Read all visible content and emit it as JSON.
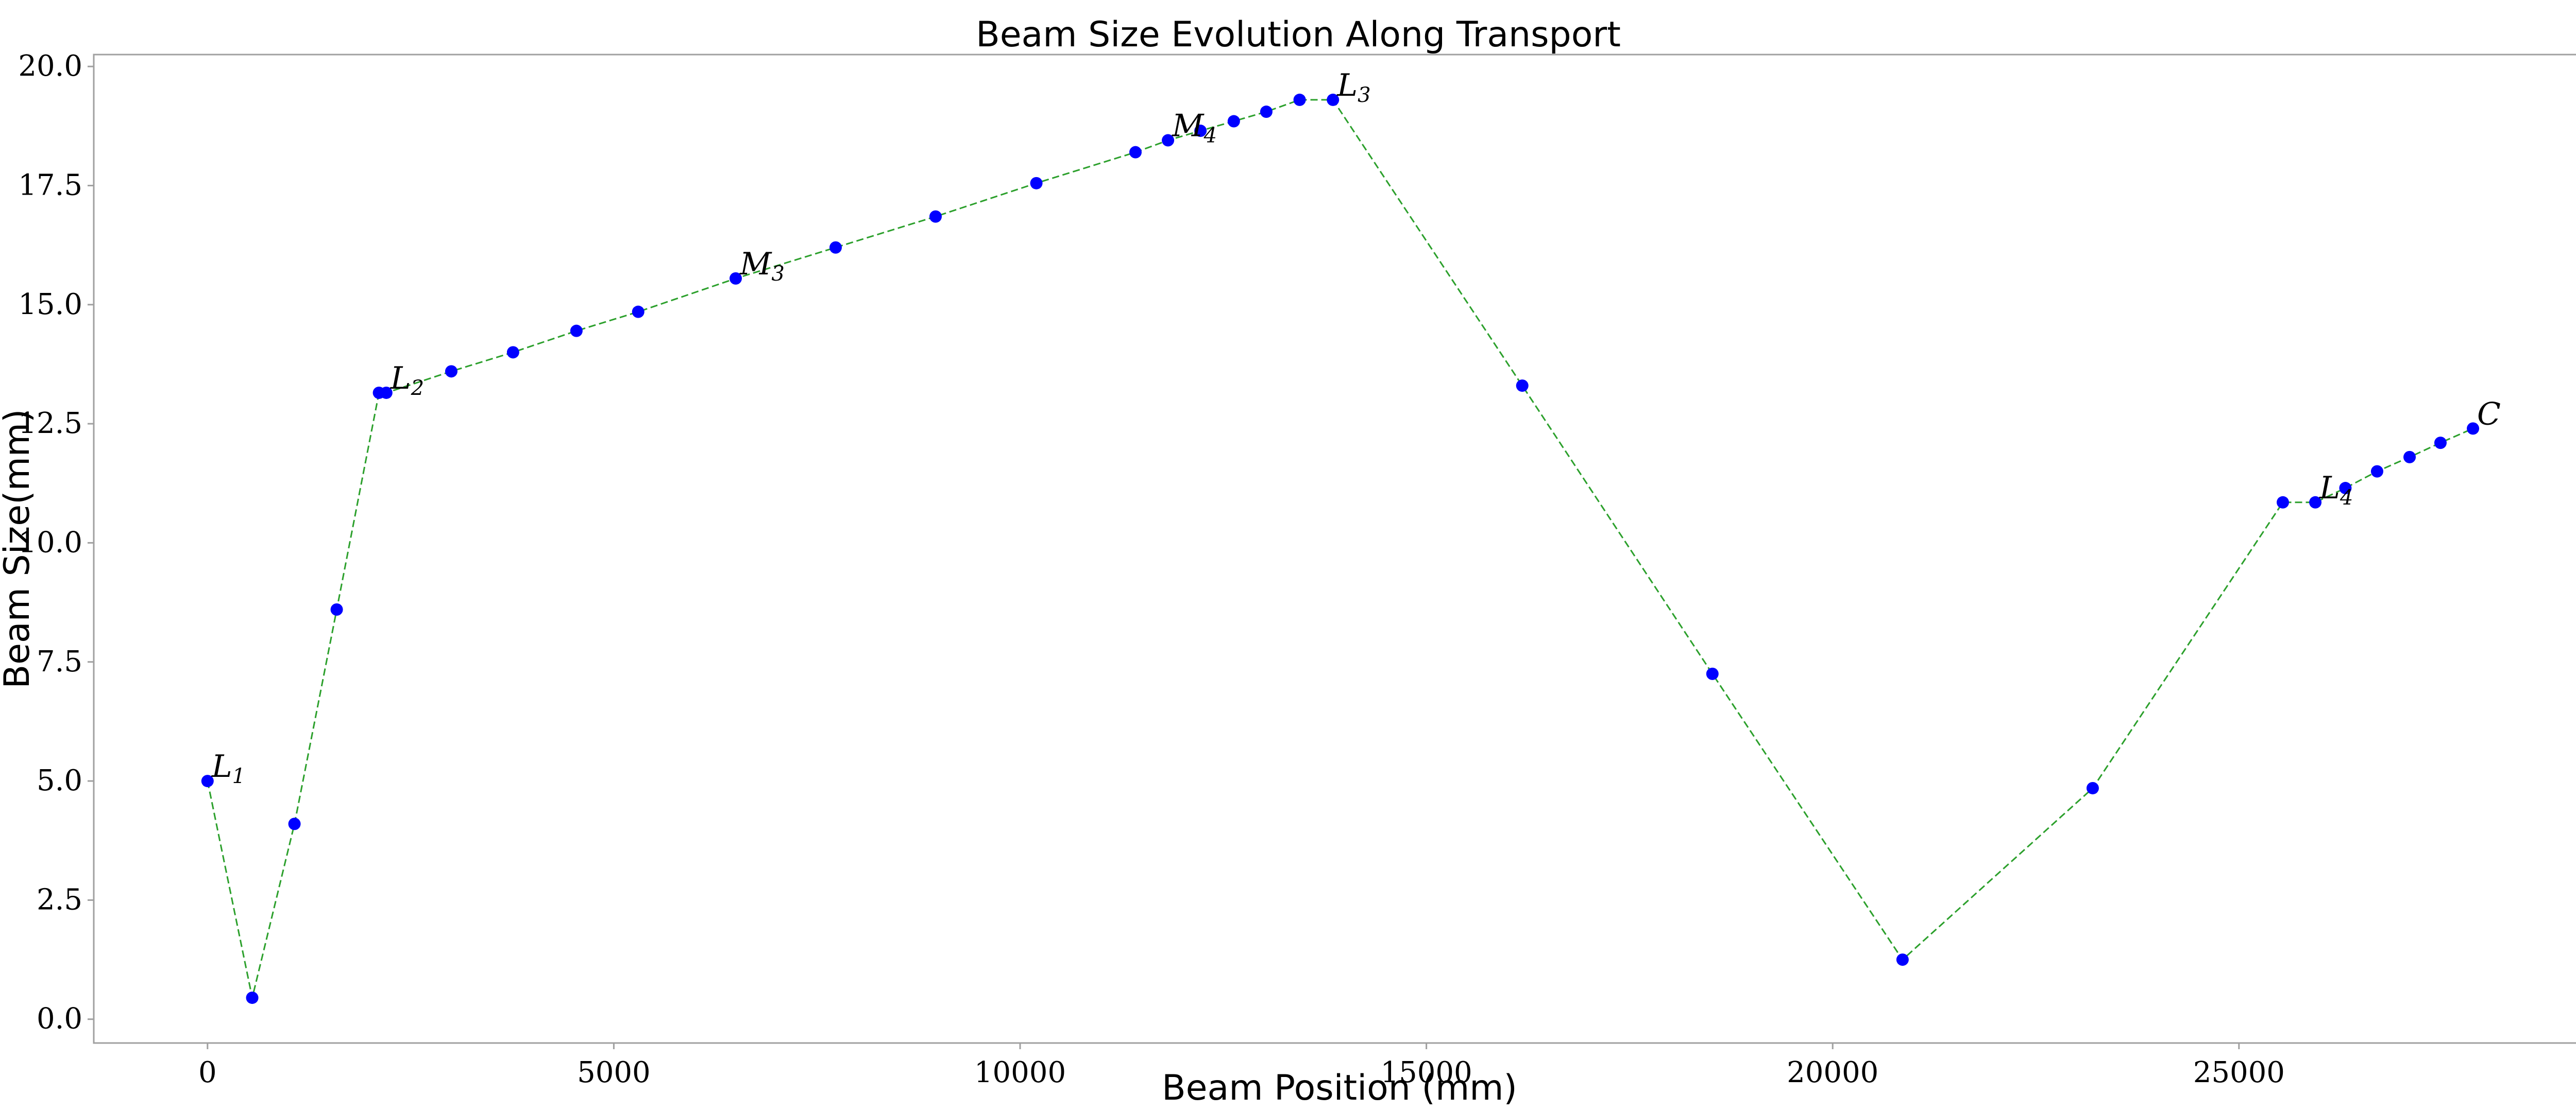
{
  "chart_data": {
    "type": "line",
    "title": "Beam Size Evolution Along Transport",
    "xlabel": "Beam Position (mm)",
    "ylabel": "Beam Size(mm)",
    "xlim": [
      -1400,
      29300
    ],
    "ylim": [
      -0.5,
      20.25
    ],
    "xticks": [
      0,
      5000,
      10000,
      15000,
      20000,
      25000
    ],
    "yticks": [
      0.0,
      2.5,
      5.0,
      7.5,
      10.0,
      12.5,
      15.0,
      17.5,
      20.0
    ],
    "ytick_labels": [
      "0.0",
      "2.5",
      "5.0",
      "7.5",
      "10.0",
      "12.5",
      "15.0",
      "17.5",
      "20.0"
    ],
    "grid": false,
    "line_color": "#2ca02c",
    "line_style": "dashed",
    "marker_color": "#0000ff",
    "series": [
      {
        "x": [
          0,
          550,
          1070,
          1590,
          2110,
          2200,
          3000,
          3760,
          4540,
          5300,
          6500,
          7730,
          8960,
          10200,
          11420,
          11820,
          12220,
          12630,
          13030,
          13440,
          13850,
          16180,
          18520,
          20860,
          23200,
          25540,
          25940,
          26310,
          26700,
          27100,
          27480,
          27880
        ],
        "y": [
          5.0,
          0.45,
          4.1,
          8.6,
          13.15,
          13.15,
          13.6,
          14.0,
          14.45,
          14.85,
          15.55,
          16.2,
          16.85,
          17.55,
          18.2,
          18.45,
          18.65,
          18.85,
          19.05,
          19.3,
          19.3,
          13.3,
          7.25,
          1.25,
          4.85,
          10.85,
          10.85,
          11.15,
          11.5,
          11.8,
          12.1,
          12.4
        ]
      }
    ],
    "annotations": [
      {
        "base": "L",
        "sub": "1",
        "x": 0,
        "y": 5.0
      },
      {
        "base": "L",
        "sub": "2",
        "x": 2200,
        "y": 13.15
      },
      {
        "base": "M",
        "sub": "3",
        "x": 6500,
        "y": 15.55
      },
      {
        "base": "M",
        "sub": "4",
        "x": 11820,
        "y": 18.45
      },
      {
        "base": "L",
        "sub": "3",
        "x": 13850,
        "y": 19.3
      },
      {
        "base": "L",
        "sub": "4",
        "x": 25940,
        "y": 10.85
      },
      {
        "base": "C",
        "sub": "",
        "x": 27880,
        "y": 12.4
      }
    ]
  }
}
